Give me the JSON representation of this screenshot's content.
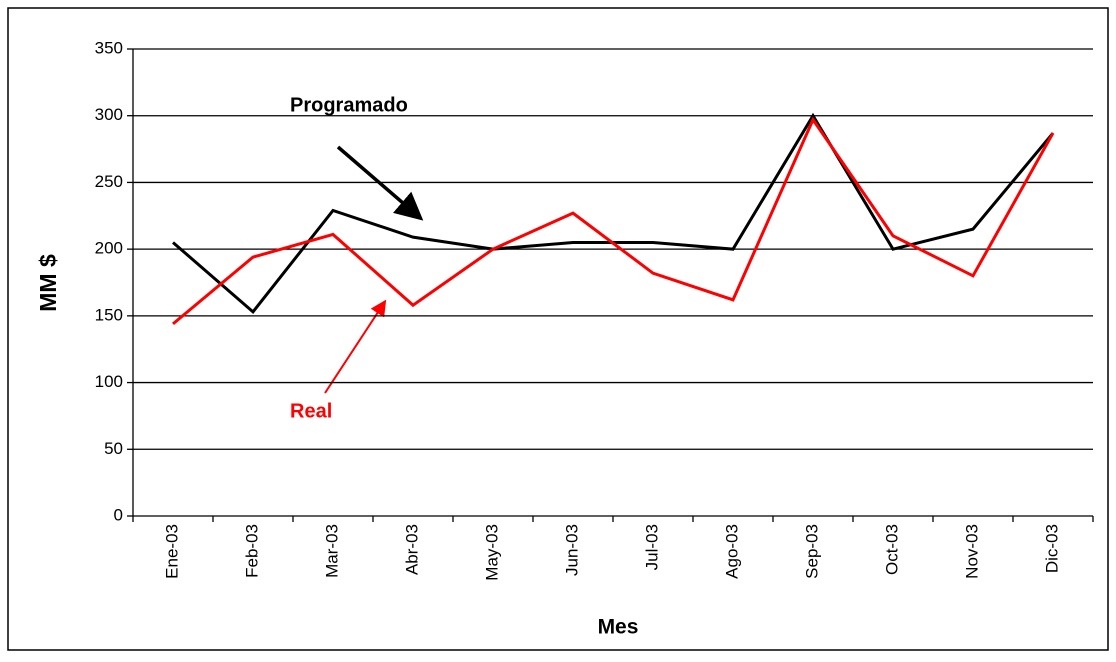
{
  "chart_data": {
    "type": "line",
    "categories": [
      "Ene-03",
      "Feb-03",
      "Mar-03",
      "Abr-03",
      "May-03",
      "Jun-03",
      "Jul-03",
      "Ago-03",
      "Sep-03",
      "Oct-03",
      "Nov-03",
      "Dic-03"
    ],
    "series": [
      {
        "name": "Programado",
        "color": "#000000",
        "values": [
          205,
          153,
          229,
          209,
          200,
          205,
          205,
          200,
          300,
          200,
          215,
          287
        ]
      },
      {
        "name": "Real",
        "color": "#ff0000",
        "values": [
          144,
          194,
          211,
          158,
          200,
          227,
          182,
          162,
          297,
          210,
          180,
          287
        ]
      }
    ],
    "x_label": "Mes",
    "y_label": "MM $",
    "ylim": [
      0,
      350
    ],
    "yticks": [
      0,
      50,
      100,
      150,
      200,
      250,
      300,
      350
    ],
    "grid": true
  }
}
